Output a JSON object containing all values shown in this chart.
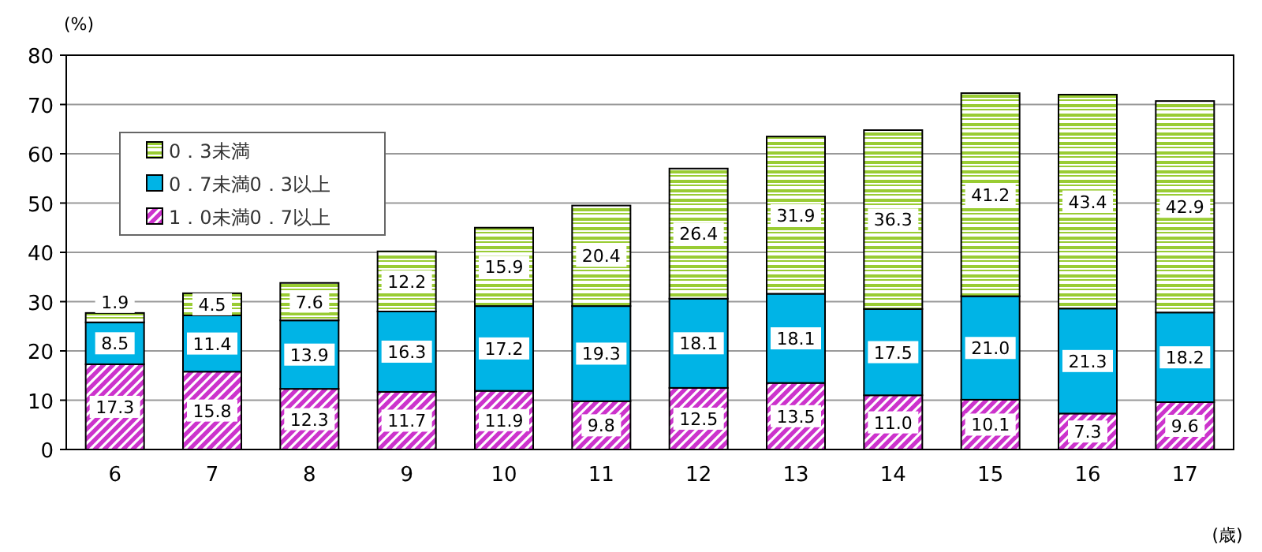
{
  "chart_data": {
    "type": "bar",
    "stacked": true,
    "ylabel": "(%)",
    "xlabel": "(歳)",
    "categories": [
      "6",
      "7",
      "8",
      "9",
      "10",
      "11",
      "12",
      "13",
      "14",
      "15",
      "16",
      "17"
    ],
    "ylim": [
      0,
      80
    ],
    "yticks": [
      0,
      10,
      20,
      30,
      40,
      50,
      60,
      70,
      80
    ],
    "grid": "y",
    "legend": "top left",
    "series": [
      {
        "name": "1．0未満0．7以上",
        "color": "#cc33cc",
        "values": [
          17.3,
          15.8,
          12.3,
          11.7,
          11.9,
          9.8,
          12.5,
          13.5,
          11.0,
          10.1,
          7.3,
          9.6
        ],
        "value_labels": [
          "17.3",
          "15.8",
          "12.3",
          "11.7",
          "11.9",
          "9.8",
          "12.5",
          "13.5",
          "11.0",
          "10.1",
          "7.3",
          "9.6"
        ]
      },
      {
        "name": "0．7未満0．3以上",
        "color": "#00b4e6",
        "values": [
          8.5,
          11.4,
          13.9,
          16.3,
          17.2,
          19.3,
          18.1,
          18.1,
          17.5,
          21.0,
          21.3,
          18.2
        ],
        "value_labels": [
          "8.5",
          "11.4",
          "13.9",
          "16.3",
          "17.2",
          "19.3",
          "18.1",
          "18.1",
          "17.5",
          "21.0",
          "21.3",
          "18.2"
        ]
      },
      {
        "name": "0．3未満",
        "color": "#99cc33",
        "values": [
          1.9,
          4.5,
          7.6,
          12.2,
          15.9,
          20.4,
          26.4,
          31.9,
          36.3,
          41.2,
          43.4,
          42.9
        ],
        "value_labels": [
          "1.9",
          "4.5",
          "7.6",
          "12.2",
          "15.9",
          "20.4",
          "26.4",
          "31.9",
          "36.3",
          "41.2",
          "43.4",
          "42.9"
        ]
      }
    ]
  }
}
